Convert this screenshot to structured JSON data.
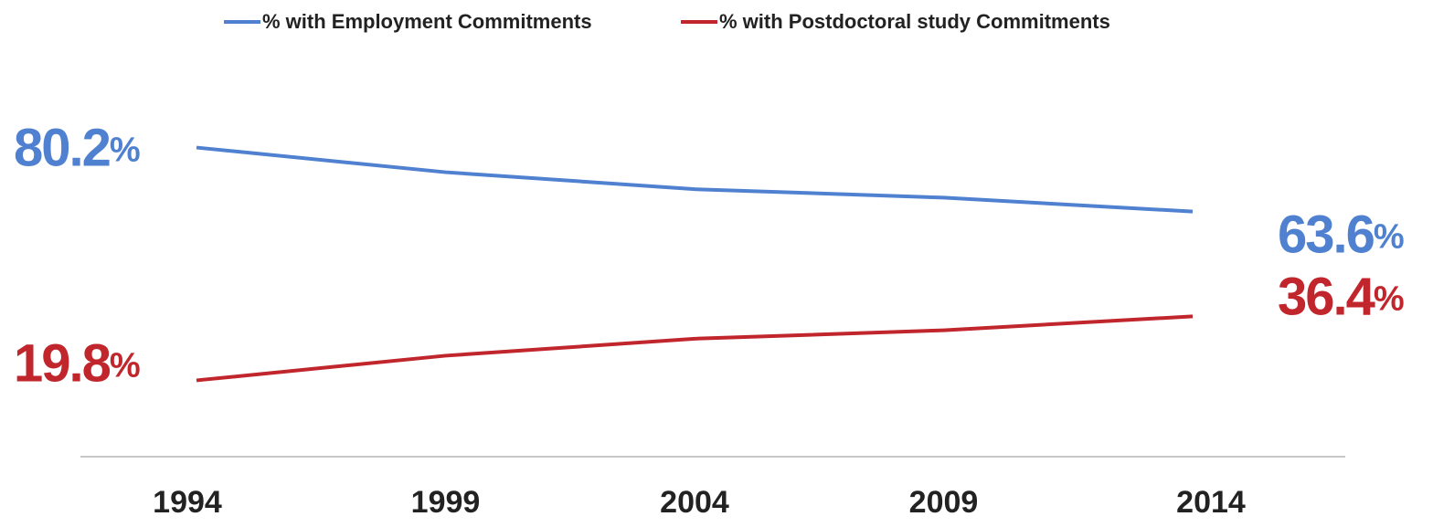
{
  "chart_data": {
    "type": "line",
    "categories": [
      "1994",
      "1999",
      "2004",
      "2009",
      "2014"
    ],
    "series": [
      {
        "name": "% with Employment Commitments",
        "color": "#4f81d0",
        "values": [
          80.2,
          73.8,
          69.4,
          67.2,
          63.6
        ],
        "value_labels": [
          "80.2%",
          null,
          null,
          null,
          "63.6%"
        ]
      },
      {
        "name": "% with Postdoctoral study Commitments",
        "color": "#c0262c",
        "values": [
          19.8,
          26.2,
          30.6,
          32.8,
          36.4
        ],
        "value_labels": [
          "19.8%",
          null,
          null,
          null,
          "36.4%"
        ]
      }
    ],
    "ylim": [
      0,
      100
    ]
  }
}
